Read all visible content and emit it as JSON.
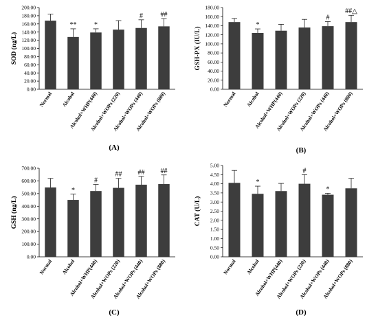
{
  "chart_data": [
    {
      "type": "bar",
      "panel_label": "(A)",
      "ylabel": "SOD (ng/L)",
      "ylim": [
        0,
        200
      ],
      "ytick_step": 20,
      "ytick_decimals": 2,
      "categories": [
        "Normal",
        "Alcohol",
        "Alcohol+WHP(440)",
        "Alcohol+WOPs (220)",
        "Alcohol+WOPs (440)",
        "Alcohol+WOPs (880)"
      ],
      "values": [
        168,
        128,
        139,
        146,
        150,
        154
      ],
      "errors": [
        16,
        20,
        9,
        22,
        20,
        19
      ],
      "significance": [
        "",
        "**",
        "*",
        "",
        "#",
        "##"
      ],
      "bar_color": "#3d3d3d"
    },
    {
      "type": "bar",
      "panel_label": "(B)",
      "ylabel": "GSH-PX (IU/L)",
      "ylim": [
        0,
        180
      ],
      "ytick_step": 20,
      "ytick_decimals": 2,
      "categories": [
        "Normal",
        "Alcohol",
        "Alcohol+WHP(440)",
        "Alcohol+WOPs (220)",
        "Alcohol+WOPs (440)",
        "Alcohol+WOPs (880)"
      ],
      "values": [
        148,
        124,
        129,
        136,
        139,
        148
      ],
      "errors": [
        8,
        9,
        14,
        18,
        10,
        15
      ],
      "significance": [
        "",
        "*",
        "",
        "",
        "#",
        "##△"
      ],
      "bar_color": "#3d3d3d"
    },
    {
      "type": "bar",
      "panel_label": "(C)",
      "ylabel": "GSH (ng/L)",
      "ylim": [
        0,
        700
      ],
      "ytick_step": 100,
      "ytick_decimals": 2,
      "categories": [
        "Normal",
        "Alcohol",
        "Alcohol+WHP(440)",
        "Alcohol+WOPs (220)",
        "Alcohol+WOPs (440)",
        "Alcohol+WOPs (880)"
      ],
      "values": [
        548,
        450,
        520,
        545,
        570,
        575
      ],
      "errors": [
        72,
        45,
        52,
        75,
        65,
        72
      ],
      "significance": [
        "",
        "*",
        "#",
        "##",
        "##",
        "##"
      ],
      "bar_color": "#3d3d3d"
    },
    {
      "type": "bar",
      "panel_label": "(D)",
      "ylabel": "CAT (U/L)",
      "ylim": [
        0,
        5
      ],
      "ytick_step": 0.5,
      "ytick_decimals": 2,
      "categories": [
        "Normal",
        "Alcohol",
        "Alcohol+WHP(440)",
        "Alcohol+WOPs (220)",
        "Alcohol+WOPs (440)",
        "Alcohol+WOPs (880)"
      ],
      "values": [
        4.05,
        3.45,
        3.6,
        4.0,
        3.4,
        3.75
      ],
      "errors": [
        0.68,
        0.42,
        0.42,
        0.5,
        0.08,
        0.55
      ],
      "significance": [
        "",
        "*",
        "",
        "#",
        "*",
        ""
      ],
      "bar_color": "#3d3d3d"
    }
  ]
}
